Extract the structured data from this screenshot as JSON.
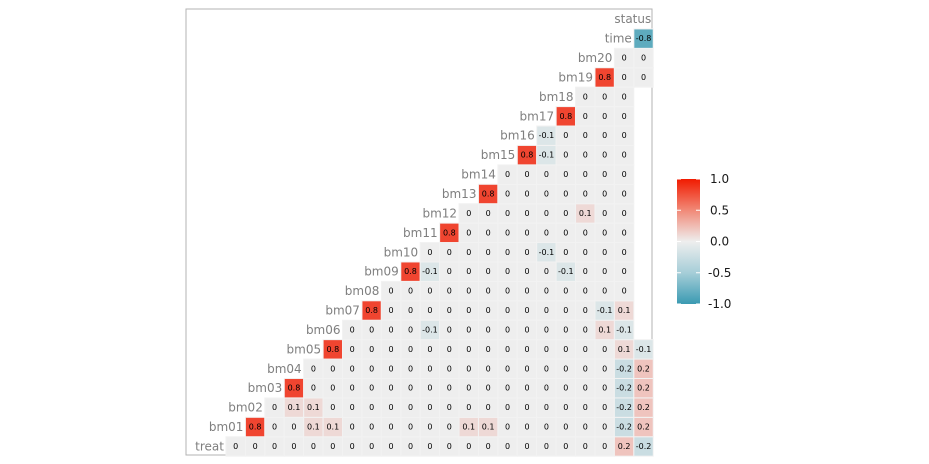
{
  "chart_data": {
    "type": "heatmap",
    "title": "",
    "xlabel": "",
    "ylabel": "",
    "variables": [
      "treat",
      "bm01",
      "bm02",
      "bm03",
      "bm04",
      "bm05",
      "bm06",
      "bm07",
      "bm08",
      "bm09",
      "bm10",
      "bm11",
      "bm12",
      "bm13",
      "bm14",
      "bm15",
      "bm16",
      "bm17",
      "bm18",
      "bm19",
      "bm20",
      "time",
      "status"
    ],
    "rows": [
      {
        "label": "treat",
        "values": [
          0,
          0,
          0,
          0,
          0,
          0,
          0,
          0,
          0,
          0,
          0,
          0,
          0,
          0,
          0,
          0,
          0,
          0,
          0,
          0,
          0.2,
          -0.2
        ]
      },
      {
        "label": "bm01",
        "values": [
          0.8,
          0,
          0,
          0.1,
          0.1,
          0,
          0,
          0,
          0,
          0,
          0,
          0.1,
          0.1,
          0,
          0,
          0,
          0,
          0,
          0,
          -0.2,
          0.2
        ]
      },
      {
        "label": "bm02",
        "values": [
          0,
          0.1,
          0.1,
          0,
          0,
          0,
          0,
          0,
          0,
          0,
          0,
          0,
          0,
          0,
          0,
          0,
          0,
          0,
          -0.2,
          0.2
        ]
      },
      {
        "label": "bm03",
        "values": [
          0.8,
          0,
          0,
          0,
          0,
          0,
          0,
          0,
          0,
          0,
          0,
          0,
          0,
          0,
          0,
          0,
          0,
          -0.2,
          0.2
        ]
      },
      {
        "label": "bm04",
        "values": [
          0,
          0,
          0,
          0,
          0,
          0,
          0,
          0,
          0,
          0,
          0,
          0,
          0,
          0,
          0,
          0,
          -0.2,
          0.2
        ]
      },
      {
        "label": "bm05",
        "values": [
          0.8,
          0,
          0,
          0,
          0,
          0,
          0,
          0,
          0,
          0,
          0,
          0,
          0,
          0,
          0,
          0.1,
          -0.1
        ]
      },
      {
        "label": "bm06",
        "values": [
          0,
          0,
          0,
          0,
          -0.1,
          0,
          0,
          0,
          0,
          0,
          0,
          0,
          0,
          0.1,
          -0.1
        ]
      },
      {
        "label": "bm07",
        "values": [
          0.8,
          0,
          0,
          0,
          0,
          0,
          0,
          0,
          0,
          0,
          0,
          0,
          -0.1,
          0.1
        ]
      },
      {
        "label": "bm08",
        "values": [
          0,
          0,
          0,
          0,
          0,
          0,
          0,
          0,
          0,
          0,
          0,
          0,
          0
        ]
      },
      {
        "label": "bm09",
        "values": [
          0.8,
          -0.1,
          0,
          0,
          0,
          0,
          0,
          0,
          -0.1,
          0,
          0,
          0
        ]
      },
      {
        "label": "bm10",
        "values": [
          0,
          0,
          0,
          0,
          0,
          0,
          -0.1,
          0,
          0,
          0,
          0
        ]
      },
      {
        "label": "bm11",
        "values": [
          0.8,
          0,
          0,
          0,
          0,
          0,
          0,
          0,
          0,
          0
        ]
      },
      {
        "label": "bm12",
        "values": [
          0,
          0,
          0,
          0,
          0,
          0,
          0.1,
          0,
          0
        ]
      },
      {
        "label": "bm13",
        "values": [
          0.8,
          0,
          0,
          0,
          0,
          0,
          0,
          0
        ]
      },
      {
        "label": "bm14",
        "values": [
          0,
          0,
          0,
          0,
          0,
          0,
          0
        ]
      },
      {
        "label": "bm15",
        "values": [
          0.8,
          -0.1,
          0,
          0,
          0,
          0
        ]
      },
      {
        "label": "bm16",
        "values": [
          -0.1,
          0,
          0,
          0,
          0
        ]
      },
      {
        "label": "bm17",
        "values": [
          0.8,
          0,
          0,
          0
        ]
      },
      {
        "label": "bm18",
        "values": [
          0,
          0,
          0
        ]
      },
      {
        "label": "bm19",
        "values": [
          0.8,
          0,
          0
        ]
      },
      {
        "label": "bm20",
        "values": [
          0,
          0
        ]
      },
      {
        "label": "time",
        "values": [
          -0.8
        ]
      },
      {
        "label": "status",
        "values": []
      }
    ],
    "color_scale": {
      "low": "#3A9AB2",
      "mid": "#EEEEEE",
      "high": "#F11B00",
      "limits": [
        -1,
        1
      ],
      "breaks": [
        "1.0",
        "0.5",
        "0.0",
        "-0.5",
        "-1.0"
      ]
    },
    "legend_position": "right"
  }
}
